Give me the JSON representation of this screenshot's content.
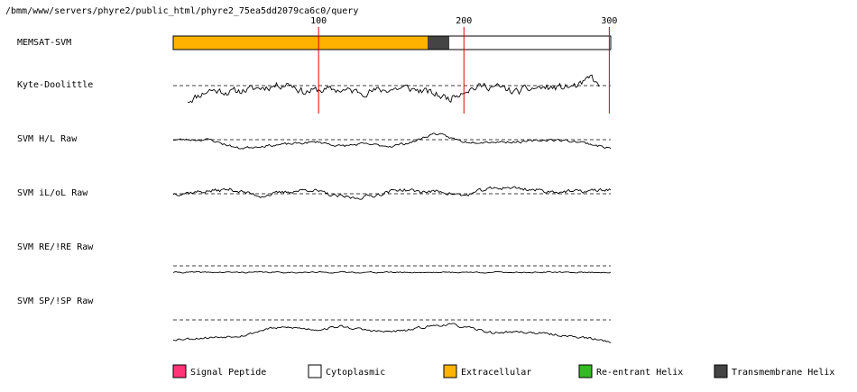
{
  "header": {
    "path": "/bmm/www/servers/phyre2/public_html/phyre2_75ea5dd2079ca6c0/query"
  },
  "chart_data": {
    "type": "line",
    "xlim": [
      0,
      301
    ],
    "x_ticks": [
      100,
      200,
      300
    ],
    "gridlines": "vertical-at-ticks",
    "memsat": {
      "name": "MEMSAT-SVM",
      "segments": [
        {
          "start": 0,
          "end": 175,
          "type": "Extracellular"
        },
        {
          "start": 175,
          "end": 190,
          "type": "Transmembrane Helix"
        },
        {
          "start": 190,
          "end": 301,
          "type": "Cytoplasmic"
        }
      ]
    },
    "tracks": [
      {
        "name": "Kyte-Doolittle",
        "start": 10,
        "end": 293,
        "amp": 6,
        "seed": 11,
        "points": [
          [
            10,
            -14
          ],
          [
            25,
            -4
          ],
          [
            40,
            -6
          ],
          [
            60,
            -2
          ],
          [
            80,
            2
          ],
          [
            90,
            -6
          ],
          [
            100,
            -4
          ],
          [
            115,
            -4
          ],
          [
            130,
            -6
          ],
          [
            145,
            -4
          ],
          [
            160,
            -2
          ],
          [
            175,
            -6
          ],
          [
            190,
            -12
          ],
          [
            200,
            -4
          ],
          [
            215,
            0
          ],
          [
            225,
            -2
          ],
          [
            235,
            -6
          ],
          [
            250,
            -2
          ],
          [
            265,
            -2
          ],
          [
            280,
            0
          ],
          [
            288,
            8
          ],
          [
            293,
            -2
          ]
        ]
      },
      {
        "name": "SVM H/L Raw",
        "start": 0,
        "end": 301,
        "amp": 2,
        "seed": 23,
        "points": [
          [
            0,
            0
          ],
          [
            25,
            0
          ],
          [
            45,
            -8
          ],
          [
            60,
            -6
          ],
          [
            80,
            -4
          ],
          [
            100,
            -2
          ],
          [
            115,
            -6
          ],
          [
            130,
            -4
          ],
          [
            150,
            -6
          ],
          [
            165,
            -2
          ],
          [
            180,
            6
          ],
          [
            200,
            -2
          ],
          [
            220,
            -2
          ],
          [
            240,
            -2
          ],
          [
            260,
            0
          ],
          [
            280,
            -2
          ],
          [
            301,
            -8
          ]
        ]
      },
      {
        "name": "SVM iL/oL Raw",
        "start": 0,
        "end": 301,
        "amp": 3,
        "seed": 37,
        "points": [
          [
            0,
            0
          ],
          [
            20,
            2
          ],
          [
            40,
            4
          ],
          [
            60,
            -2
          ],
          [
            80,
            2
          ],
          [
            95,
            4
          ],
          [
            110,
            -2
          ],
          [
            125,
            -4
          ],
          [
            140,
            -1
          ],
          [
            155,
            4
          ],
          [
            170,
            2
          ],
          [
            185,
            2
          ],
          [
            200,
            -2
          ],
          [
            215,
            4
          ],
          [
            230,
            6
          ],
          [
            245,
            4
          ],
          [
            260,
            2
          ],
          [
            280,
            2
          ],
          [
            301,
            4
          ]
        ]
      },
      {
        "name": "SVM RE/!RE Raw",
        "start": 0,
        "end": 301,
        "amp": 1,
        "seed": 41,
        "points": [
          [
            0,
            -6
          ],
          [
            40,
            -6
          ],
          [
            80,
            -6
          ],
          [
            120,
            -6
          ],
          [
            160,
            -6
          ],
          [
            200,
            -6
          ],
          [
            240,
            -6
          ],
          [
            280,
            -6
          ],
          [
            301,
            -6
          ]
        ]
      },
      {
        "name": "SVM SP/!SP Raw",
        "start": 0,
        "end": 301,
        "amp": 2,
        "seed": 53,
        "points": [
          [
            0,
            -18
          ],
          [
            30,
            -16
          ],
          [
            50,
            -14
          ],
          [
            65,
            -8
          ],
          [
            80,
            -7
          ],
          [
            100,
            -9
          ],
          [
            115,
            -6
          ],
          [
            130,
            -9
          ],
          [
            145,
            -11
          ],
          [
            160,
            -10
          ],
          [
            175,
            -6
          ],
          [
            190,
            -4
          ],
          [
            205,
            -8
          ],
          [
            220,
            -12
          ],
          [
            235,
            -11
          ],
          [
            250,
            -12
          ],
          [
            265,
            -14
          ],
          [
            280,
            -16
          ],
          [
            301,
            -20
          ]
        ]
      }
    ],
    "legend": [
      {
        "label": "Signal Peptide",
        "color": "#ff3377"
      },
      {
        "label": "Cytoplasmic",
        "color": "#ffffff"
      },
      {
        "label": "Extracellular",
        "color": "#ffb300"
      },
      {
        "label": "Re-entrant Helix",
        "color": "#33bb22"
      },
      {
        "label": "Transmembrane Helix",
        "color": "#444444"
      }
    ]
  }
}
